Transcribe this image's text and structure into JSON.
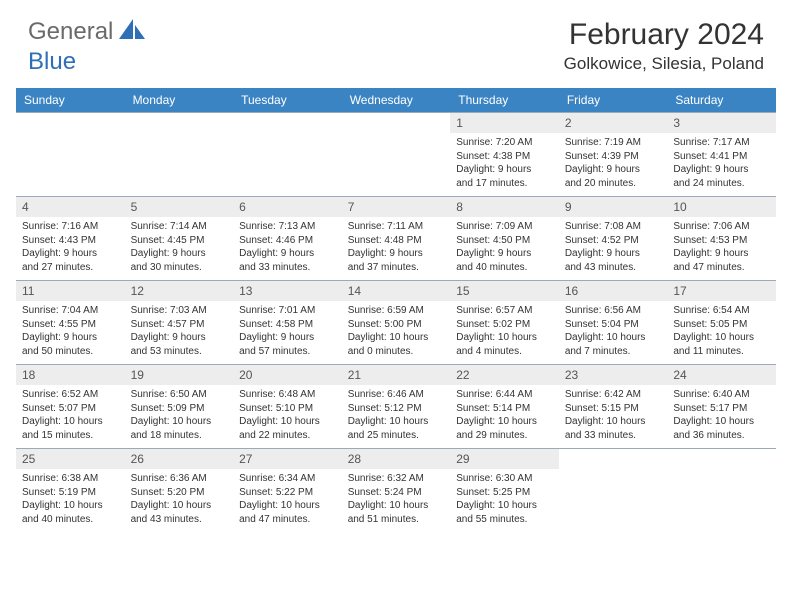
{
  "logo": {
    "text_general": "General",
    "text_blue": "Blue"
  },
  "title": "February 2024",
  "location": "Golkowice, Silesia, Poland",
  "colors": {
    "header_bg": "#3b84c4",
    "daynum_bg": "#ededed",
    "row_border": "#9aaabb",
    "logo_gray": "#6a6a6a",
    "logo_blue": "#2f6fb5"
  },
  "day_headers": [
    "Sunday",
    "Monday",
    "Tuesday",
    "Wednesday",
    "Thursday",
    "Friday",
    "Saturday"
  ],
  "weeks": [
    [
      {
        "num": "",
        "lines": []
      },
      {
        "num": "",
        "lines": []
      },
      {
        "num": "",
        "lines": []
      },
      {
        "num": "",
        "lines": []
      },
      {
        "num": "1",
        "lines": [
          "Sunrise: 7:20 AM",
          "Sunset: 4:38 PM",
          "Daylight: 9 hours and 17 minutes."
        ]
      },
      {
        "num": "2",
        "lines": [
          "Sunrise: 7:19 AM",
          "Sunset: 4:39 PM",
          "Daylight: 9 hours and 20 minutes."
        ]
      },
      {
        "num": "3",
        "lines": [
          "Sunrise: 7:17 AM",
          "Sunset: 4:41 PM",
          "Daylight: 9 hours and 24 minutes."
        ]
      }
    ],
    [
      {
        "num": "4",
        "lines": [
          "Sunrise: 7:16 AM",
          "Sunset: 4:43 PM",
          "Daylight: 9 hours and 27 minutes."
        ]
      },
      {
        "num": "5",
        "lines": [
          "Sunrise: 7:14 AM",
          "Sunset: 4:45 PM",
          "Daylight: 9 hours and 30 minutes."
        ]
      },
      {
        "num": "6",
        "lines": [
          "Sunrise: 7:13 AM",
          "Sunset: 4:46 PM",
          "Daylight: 9 hours and 33 minutes."
        ]
      },
      {
        "num": "7",
        "lines": [
          "Sunrise: 7:11 AM",
          "Sunset: 4:48 PM",
          "Daylight: 9 hours and 37 minutes."
        ]
      },
      {
        "num": "8",
        "lines": [
          "Sunrise: 7:09 AM",
          "Sunset: 4:50 PM",
          "Daylight: 9 hours and 40 minutes."
        ]
      },
      {
        "num": "9",
        "lines": [
          "Sunrise: 7:08 AM",
          "Sunset: 4:52 PM",
          "Daylight: 9 hours and 43 minutes."
        ]
      },
      {
        "num": "10",
        "lines": [
          "Sunrise: 7:06 AM",
          "Sunset: 4:53 PM",
          "Daylight: 9 hours and 47 minutes."
        ]
      }
    ],
    [
      {
        "num": "11",
        "lines": [
          "Sunrise: 7:04 AM",
          "Sunset: 4:55 PM",
          "Daylight: 9 hours and 50 minutes."
        ]
      },
      {
        "num": "12",
        "lines": [
          "Sunrise: 7:03 AM",
          "Sunset: 4:57 PM",
          "Daylight: 9 hours and 53 minutes."
        ]
      },
      {
        "num": "13",
        "lines": [
          "Sunrise: 7:01 AM",
          "Sunset: 4:58 PM",
          "Daylight: 9 hours and 57 minutes."
        ]
      },
      {
        "num": "14",
        "lines": [
          "Sunrise: 6:59 AM",
          "Sunset: 5:00 PM",
          "Daylight: 10 hours and 0 minutes."
        ]
      },
      {
        "num": "15",
        "lines": [
          "Sunrise: 6:57 AM",
          "Sunset: 5:02 PM",
          "Daylight: 10 hours and 4 minutes."
        ]
      },
      {
        "num": "16",
        "lines": [
          "Sunrise: 6:56 AM",
          "Sunset: 5:04 PM",
          "Daylight: 10 hours and 7 minutes."
        ]
      },
      {
        "num": "17",
        "lines": [
          "Sunrise: 6:54 AM",
          "Sunset: 5:05 PM",
          "Daylight: 10 hours and 11 minutes."
        ]
      }
    ],
    [
      {
        "num": "18",
        "lines": [
          "Sunrise: 6:52 AM",
          "Sunset: 5:07 PM",
          "Daylight: 10 hours and 15 minutes."
        ]
      },
      {
        "num": "19",
        "lines": [
          "Sunrise: 6:50 AM",
          "Sunset: 5:09 PM",
          "Daylight: 10 hours and 18 minutes."
        ]
      },
      {
        "num": "20",
        "lines": [
          "Sunrise: 6:48 AM",
          "Sunset: 5:10 PM",
          "Daylight: 10 hours and 22 minutes."
        ]
      },
      {
        "num": "21",
        "lines": [
          "Sunrise: 6:46 AM",
          "Sunset: 5:12 PM",
          "Daylight: 10 hours and 25 minutes."
        ]
      },
      {
        "num": "22",
        "lines": [
          "Sunrise: 6:44 AM",
          "Sunset: 5:14 PM",
          "Daylight: 10 hours and 29 minutes."
        ]
      },
      {
        "num": "23",
        "lines": [
          "Sunrise: 6:42 AM",
          "Sunset: 5:15 PM",
          "Daylight: 10 hours and 33 minutes."
        ]
      },
      {
        "num": "24",
        "lines": [
          "Sunrise: 6:40 AM",
          "Sunset: 5:17 PM",
          "Daylight: 10 hours and 36 minutes."
        ]
      }
    ],
    [
      {
        "num": "25",
        "lines": [
          "Sunrise: 6:38 AM",
          "Sunset: 5:19 PM",
          "Daylight: 10 hours and 40 minutes."
        ]
      },
      {
        "num": "26",
        "lines": [
          "Sunrise: 6:36 AM",
          "Sunset: 5:20 PM",
          "Daylight: 10 hours and 43 minutes."
        ]
      },
      {
        "num": "27",
        "lines": [
          "Sunrise: 6:34 AM",
          "Sunset: 5:22 PM",
          "Daylight: 10 hours and 47 minutes."
        ]
      },
      {
        "num": "28",
        "lines": [
          "Sunrise: 6:32 AM",
          "Sunset: 5:24 PM",
          "Daylight: 10 hours and 51 minutes."
        ]
      },
      {
        "num": "29",
        "lines": [
          "Sunrise: 6:30 AM",
          "Sunset: 5:25 PM",
          "Daylight: 10 hours and 55 minutes."
        ]
      },
      {
        "num": "",
        "lines": []
      },
      {
        "num": "",
        "lines": []
      }
    ]
  ]
}
